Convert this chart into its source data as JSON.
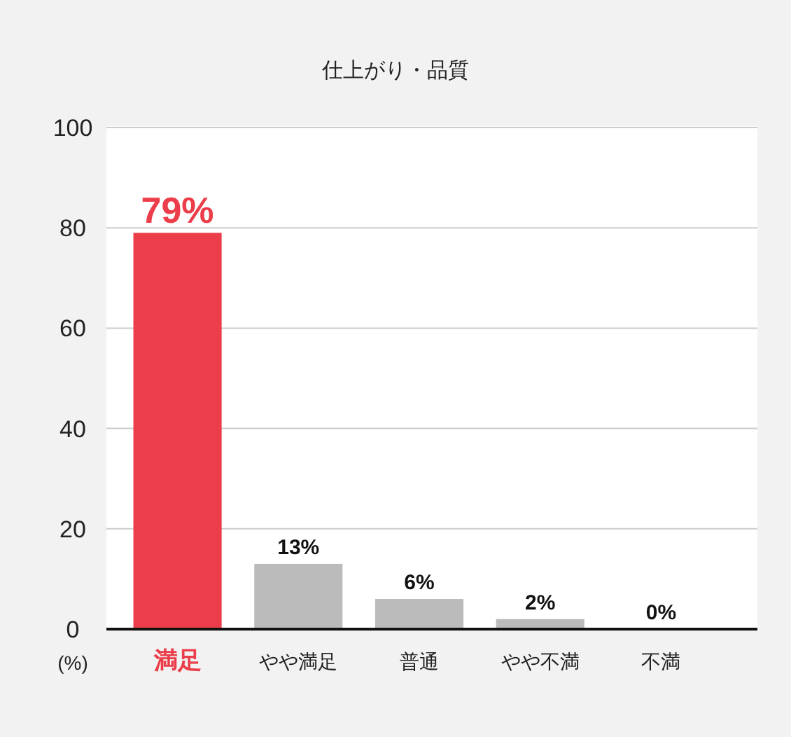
{
  "chart_data": {
    "type": "bar",
    "title": "仕上がり・品質",
    "ylabel": "(%)",
    "categories": [
      "満足",
      "やや満足",
      "普通",
      "やや不満",
      "不満"
    ],
    "values": [
      79,
      13,
      6,
      2,
      0
    ],
    "colors": [
      "#eb3e4a",
      "#bbbbbb",
      "#bbbbbb",
      "#bbbbbb",
      "#bbbbbb"
    ],
    "value_labels": [
      "79%",
      "13%",
      "6%",
      "2%",
      "0%"
    ],
    "ylim": [
      0,
      100
    ],
    "yticks": [
      0,
      20,
      40,
      60,
      80,
      100
    ],
    "grid": "y"
  }
}
